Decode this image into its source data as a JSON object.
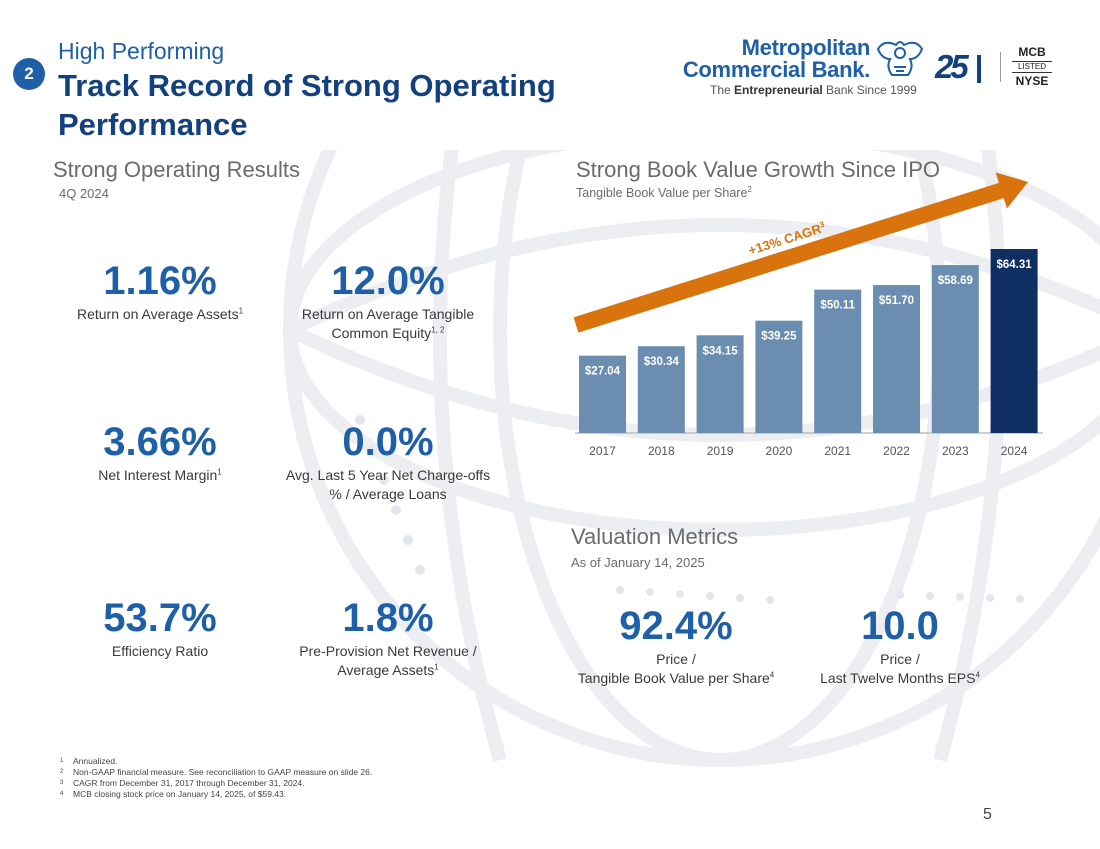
{
  "header": {
    "section_number": "2",
    "subtitle": "High Performing",
    "title": "Track Record of Strong Operating Performance"
  },
  "logo": {
    "line1": "Metropolitan",
    "line2": "Commercial Bank.",
    "tagline_prefix": "The ",
    "tagline_bold": "Entrepreneurial",
    "tagline_suffix": " Bank Since 1999",
    "anniversary": "25",
    "exchange_ticker": "MCB",
    "exchange_listed": "LISTED",
    "exchange_name": "NYSE"
  },
  "operating_results": {
    "title": "Strong Operating Results",
    "period": "4Q 2024",
    "metrics": [
      {
        "value": "1.16%",
        "label": "Return on Average Assets",
        "sup": "1"
      },
      {
        "value": "12.0%",
        "label": "Return on Average Tangible Common Equity",
        "sup": "1, 2"
      },
      {
        "value": "3.66%",
        "label": "Net Interest Margin",
        "sup": "1"
      },
      {
        "value": "0.0%",
        "label": "Avg. Last 5 Year Net Charge-offs % / Average Loans",
        "sup": ""
      },
      {
        "value": "53.7%",
        "label": "Efficiency Ratio",
        "sup": ""
      },
      {
        "value": "1.8%",
        "label": "Pre-Provision Net Revenue / Average Assets",
        "sup": "1"
      }
    ]
  },
  "book_value": {
    "title": "Strong Book Value Growth Since IPO",
    "subtitle": "Tangible Book Value per Share",
    "subtitle_sup": "2"
  },
  "chart_data": {
    "type": "bar",
    "title": "Strong Book Value Growth Since IPO",
    "ylabel": "Tangible Book Value per Share",
    "xlabel": "",
    "categories": [
      "2017",
      "2018",
      "2019",
      "2020",
      "2021",
      "2022",
      "2023",
      "2024"
    ],
    "values": [
      27.04,
      30.34,
      34.15,
      39.25,
      50.11,
      51.7,
      58.69,
      64.31
    ],
    "data_labels": [
      "$27.04",
      "$30.34",
      "$34.15",
      "$39.25",
      "$50.11",
      "$51.70",
      "$58.69",
      "$64.31"
    ],
    "ylim": [
      0,
      64.31
    ],
    "grid": false,
    "annotation": "+13% CAGR",
    "annotation_sup": "3",
    "colors": {
      "bar": "#6b8db0",
      "highlight": "#0f2f63",
      "arrow": "#d9730d"
    }
  },
  "valuation": {
    "title": "Valuation Metrics",
    "as_of": "As of January 14, 2025",
    "metrics": [
      {
        "value": "92.4%",
        "label_line1": "Price /",
        "label_line2": "Tangible Book Value per Share",
        "sup": "4"
      },
      {
        "value": "10.0",
        "label_line1": "Price /",
        "label_line2": "Last Twelve Months EPS",
        "sup": "4"
      }
    ]
  },
  "footnotes": [
    {
      "n": "1",
      "text": "Annualized."
    },
    {
      "n": "2",
      "text": "Non-GAAP financial measure. See reconciliation to GAAP measure on slide 26."
    },
    {
      "n": "3",
      "text": "CAGR from December 31, 2017 through December 31, 2024."
    },
    {
      "n": "4",
      "text": "MCB closing stock price on January 14, 2025, of $59.43."
    }
  ],
  "page_number": "5"
}
